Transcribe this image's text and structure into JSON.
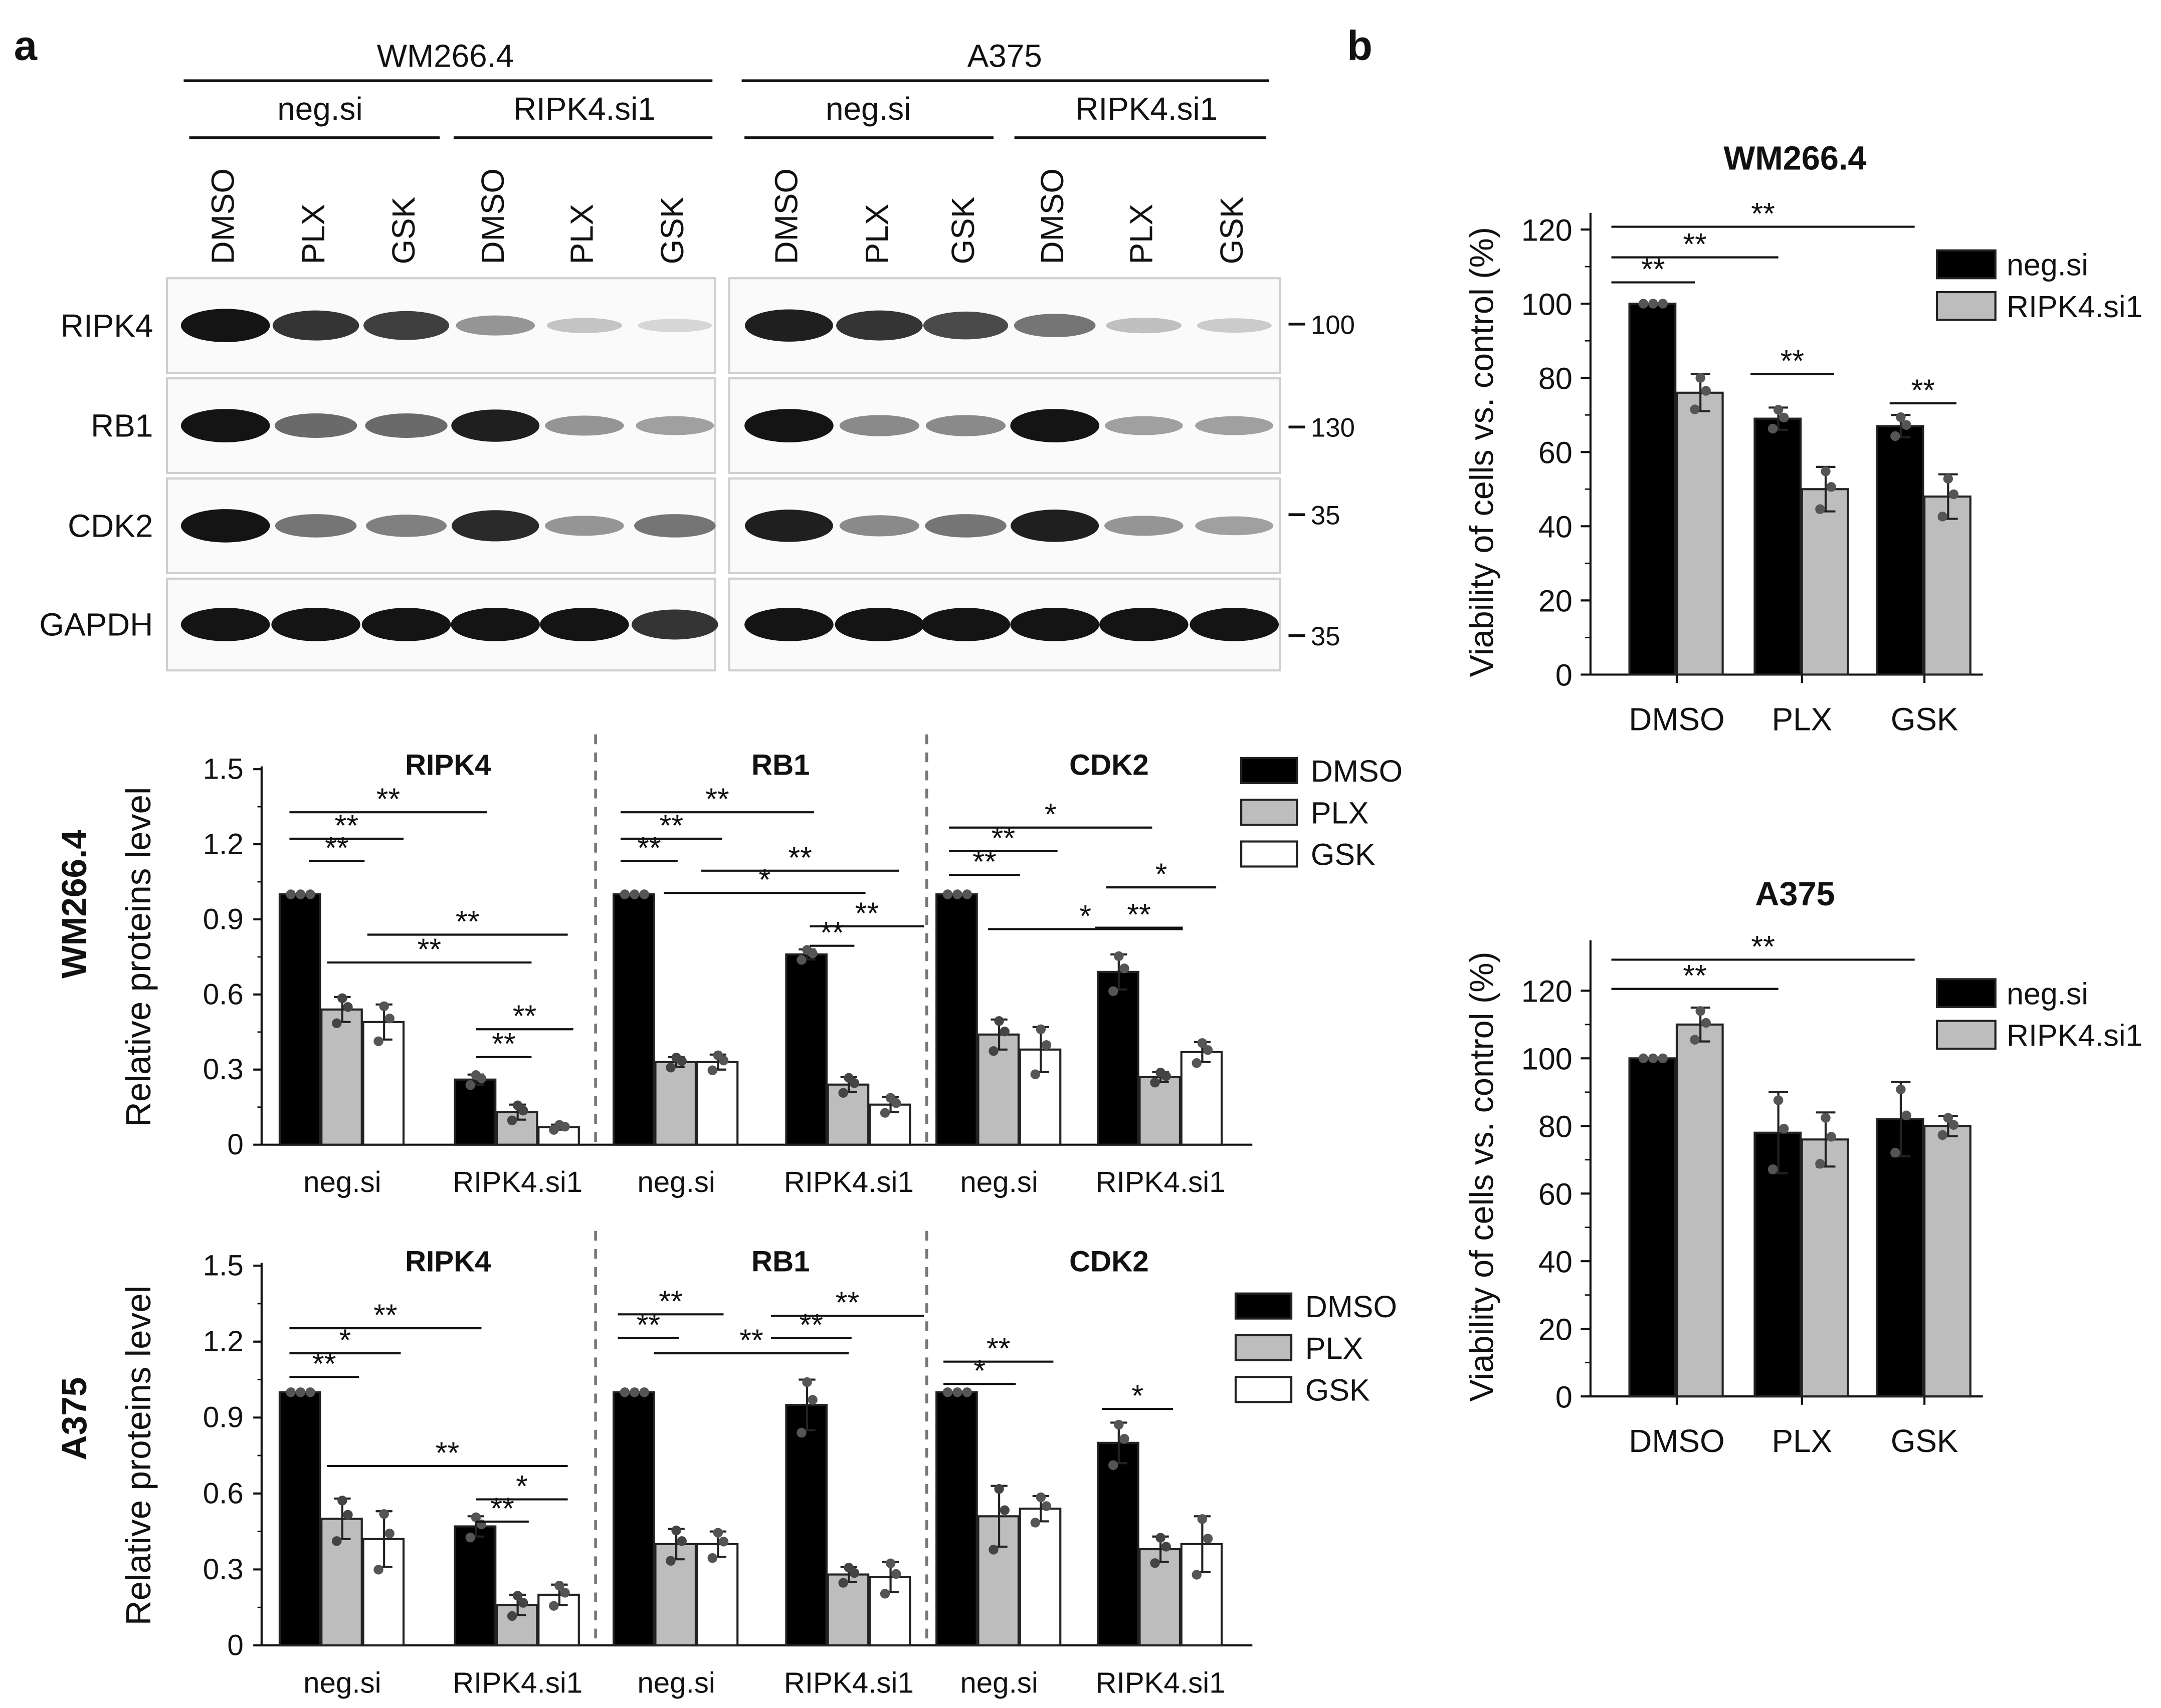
{
  "panels": {
    "a": "a",
    "b": "b"
  },
  "blot": {
    "cell_lines": [
      "WM266.4",
      "A375"
    ],
    "sirnas": [
      "neg.si",
      "RIPK4.si1"
    ],
    "treatments": [
      "DMSO",
      "PLX",
      "GSK"
    ],
    "proteins": [
      "RIPK4",
      "RB1",
      "CDK2",
      "GAPDH"
    ],
    "mw_markers": [
      "100",
      "130",
      "35",
      "35"
    ]
  },
  "colors": {
    "DMSO": "#000000",
    "PLX": "#bdbdbd",
    "GSK": "#ffffff",
    "neg.si": "#000000",
    "RIPK4.si1": "#bdbdbd"
  },
  "chart_data": [
    {
      "type": "bar",
      "panel": "a",
      "row_label": "WM266.4",
      "ylabel": "Relative proteins level",
      "ylim": [
        0,
        1.5
      ],
      "yticks": [
        "0",
        "0.3",
        "0.6",
        "0.9",
        "1.2",
        "1.5"
      ],
      "legend": [
        "DMSO",
        "PLX",
        "GSK"
      ],
      "groups": [
        "neg.si",
        "RIPK4.si1"
      ],
      "subplots": [
        {
          "title": "RIPK4",
          "series": [
            {
              "name": "DMSO",
              "values": [
                1.0,
                0.26
              ],
              "errors": [
                0,
                0.02
              ]
            },
            {
              "name": "PLX",
              "values": [
                0.54,
                0.13
              ],
              "errors": [
                0.05,
                0.03
              ]
            },
            {
              "name": "GSK",
              "values": [
                0.49,
                0.07
              ],
              "errors": [
                0.07,
                0.01
              ]
            }
          ],
          "significance": [
            "**",
            "**",
            "**",
            "**",
            "**",
            "**",
            "**"
          ]
        },
        {
          "title": "RB1",
          "series": [
            {
              "name": "DMSO",
              "values": [
                1.0,
                0.76
              ],
              "errors": [
                0,
                0.02
              ]
            },
            {
              "name": "PLX",
              "values": [
                0.33,
                0.24
              ],
              "errors": [
                0.02,
                0.03
              ]
            },
            {
              "name": "GSK",
              "values": [
                0.33,
                0.16
              ],
              "errors": [
                0.03,
                0.03
              ]
            }
          ],
          "significance": [
            "**",
            "**",
            "**",
            "**",
            "*",
            "**",
            "**"
          ]
        },
        {
          "title": "CDK2",
          "series": [
            {
              "name": "DMSO",
              "values": [
                1.0,
                0.69
              ],
              "errors": [
                0,
                0.07
              ]
            },
            {
              "name": "PLX",
              "values": [
                0.44,
                0.27
              ],
              "errors": [
                0.06,
                0.02
              ]
            },
            {
              "name": "GSK",
              "values": [
                0.38,
                0.37
              ],
              "errors": [
                0.09,
                0.04
              ]
            }
          ],
          "significance": [
            "**",
            "**",
            "*",
            "*",
            "**",
            "*"
          ]
        }
      ]
    },
    {
      "type": "bar",
      "panel": "a",
      "row_label": "A375",
      "ylabel": "Relative proteins level",
      "ylim": [
        0,
        1.5
      ],
      "yticks": [
        "0",
        "0.3",
        "0.6",
        "0.9",
        "1.2",
        "1.5"
      ],
      "legend": [
        "DMSO",
        "PLX",
        "GSK"
      ],
      "groups": [
        "neg.si",
        "RIPK4.si1"
      ],
      "subplots": [
        {
          "title": "RIPK4",
          "series": [
            {
              "name": "DMSO",
              "values": [
                1.0,
                0.47
              ],
              "errors": [
                0,
                0.04
              ]
            },
            {
              "name": "PLX",
              "values": [
                0.5,
                0.16
              ],
              "errors": [
                0.08,
                0.04
              ]
            },
            {
              "name": "GSK",
              "values": [
                0.42,
                0.2
              ],
              "errors": [
                0.11,
                0.04
              ]
            }
          ],
          "significance": [
            "**",
            "*",
            "**",
            "**",
            "**",
            "*"
          ]
        },
        {
          "title": "RB1",
          "series": [
            {
              "name": "DMSO",
              "values": [
                1.0,
                0.95
              ],
              "errors": [
                0,
                0.1
              ]
            },
            {
              "name": "PLX",
              "values": [
                0.4,
                0.28
              ],
              "errors": [
                0.06,
                0.03
              ]
            },
            {
              "name": "GSK",
              "values": [
                0.4,
                0.27
              ],
              "errors": [
                0.05,
                0.06
              ]
            }
          ],
          "significance": [
            "**",
            "**",
            "**",
            "**",
            "**"
          ]
        },
        {
          "title": "CDK2",
          "series": [
            {
              "name": "DMSO",
              "values": [
                1.0,
                0.8
              ],
              "errors": [
                0,
                0.08
              ]
            },
            {
              "name": "PLX",
              "values": [
                0.51,
                0.38
              ],
              "errors": [
                0.12,
                0.05
              ]
            },
            {
              "name": "GSK",
              "values": [
                0.54,
                0.4
              ],
              "errors": [
                0.05,
                0.11
              ]
            }
          ],
          "significance": [
            "*",
            "**",
            "*"
          ]
        }
      ]
    },
    {
      "type": "bar",
      "panel": "b",
      "title": "WM266.4",
      "ylabel": "Viability of cells vs. control (%)",
      "ylim": [
        0,
        120
      ],
      "yticks": [
        "0",
        "20",
        "40",
        "60",
        "80",
        "100",
        "120"
      ],
      "categories": [
        "DMSO",
        "PLX",
        "GSK"
      ],
      "series": [
        {
          "name": "neg.si",
          "values": [
            100,
            69,
            67
          ],
          "errors": [
            0,
            3,
            3
          ]
        },
        {
          "name": "RIPK4.si1",
          "values": [
            76,
            50,
            48
          ],
          "errors": [
            5,
            6,
            6
          ]
        }
      ],
      "significance": [
        "**",
        "**",
        "**",
        "**",
        "**"
      ]
    },
    {
      "type": "bar",
      "panel": "b",
      "title": "A375",
      "ylabel": "Viability of cells vs. control (%)",
      "ylim": [
        0,
        130
      ],
      "yticks": [
        "0",
        "20",
        "40",
        "60",
        "80",
        "100",
        "120"
      ],
      "categories": [
        "DMSO",
        "PLX",
        "GSK"
      ],
      "series": [
        {
          "name": "neg.si",
          "values": [
            100,
            78,
            82
          ],
          "errors": [
            0,
            12,
            11
          ]
        },
        {
          "name": "RIPK4.si1",
          "values": [
            110,
            76,
            80
          ],
          "errors": [
            5,
            8,
            3
          ]
        }
      ],
      "significance": [
        "**",
        "**"
      ]
    }
  ]
}
